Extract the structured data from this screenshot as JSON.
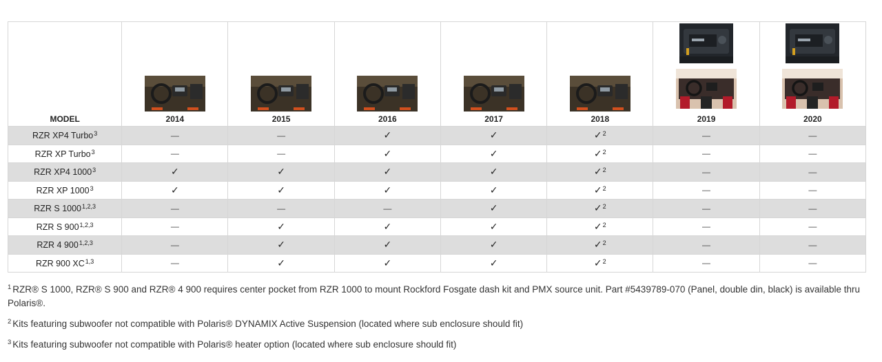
{
  "table": {
    "model_header": "MODEL",
    "years": [
      "2014",
      "2015",
      "2016",
      "2017",
      "2018",
      "2019",
      "2020"
    ],
    "year_images": [
      [
        "dash-image"
      ],
      [
        "dash-image"
      ],
      [
        "dash-image"
      ],
      [
        "dash-image"
      ],
      [
        "dash-image"
      ],
      [
        "dash-closeup-image",
        "cockpit-image"
      ],
      [
        "dash-closeup-image",
        "cockpit-image"
      ]
    ],
    "rows": [
      {
        "model": "RZR XP4 Turbo",
        "sup": "3",
        "cells": [
          "—",
          "—",
          "✓",
          "✓",
          "✓",
          "—",
          "—"
        ],
        "cell_sups": [
          "",
          "",
          "",
          "",
          "2",
          "",
          ""
        ]
      },
      {
        "model": "RZR XP Turbo",
        "sup": "3",
        "cells": [
          "—",
          "—",
          "✓",
          "✓",
          "✓",
          "—",
          "—"
        ],
        "cell_sups": [
          "",
          "",
          "",
          "",
          "2",
          "",
          ""
        ]
      },
      {
        "model": "RZR XP4 1000",
        "sup": "3",
        "cells": [
          "✓",
          "✓",
          "✓",
          "✓",
          "✓",
          "—",
          "—"
        ],
        "cell_sups": [
          "",
          "",
          "",
          "",
          "2",
          "",
          ""
        ]
      },
      {
        "model": "RZR XP 1000",
        "sup": "3",
        "cells": [
          "✓",
          "✓",
          "✓",
          "✓",
          "✓",
          "—",
          "—"
        ],
        "cell_sups": [
          "",
          "",
          "",
          "",
          "2",
          "",
          ""
        ]
      },
      {
        "model": "RZR S 1000",
        "sup": "1,2,3",
        "cells": [
          "—",
          "—",
          "—",
          "✓",
          "✓",
          "—",
          "—"
        ],
        "cell_sups": [
          "",
          "",
          "",
          "",
          "2",
          "",
          ""
        ]
      },
      {
        "model": "RZR S 900",
        "sup": "1,2,3",
        "cells": [
          "—",
          "✓",
          "✓",
          "✓",
          "✓",
          "—",
          "—"
        ],
        "cell_sups": [
          "",
          "",
          "",
          "",
          "2",
          "",
          ""
        ]
      },
      {
        "model": "RZR 4 900",
        "sup": "1,2,3",
        "cells": [
          "—",
          "✓",
          "✓",
          "✓",
          "✓",
          "—",
          "—"
        ],
        "cell_sups": [
          "",
          "",
          "",
          "",
          "2",
          "",
          ""
        ]
      },
      {
        "model": "RZR 900 XC",
        "sup": "1,3",
        "cells": [
          "—",
          "✓",
          "✓",
          "✓",
          "✓",
          "—",
          "—"
        ],
        "cell_sups": [
          "",
          "",
          "",
          "",
          "2",
          "",
          ""
        ]
      }
    ]
  },
  "footnotes": [
    {
      "num": "1",
      "text": "RZR® S 1000, RZR® S 900 and RZR® 4 900 requires center pocket from RZR 1000 to mount Rockford Fosgate dash kit and PMX source unit. Part #5439789-070 (Panel, double din, black) is available thru Polaris®."
    },
    {
      "num": "2",
      "text": "Kits featuring subwoofer not compatible with Polaris® DYNAMIX Active Suspension (located where sub enclosure should fit)"
    },
    {
      "num": "3",
      "text": "Kits featuring subwoofer not compatible with Polaris® heater option (located where sub enclosure should fit)"
    }
  ],
  "colors": {
    "shade_row": "#dddddd",
    "border": "#d6d6d6"
  }
}
